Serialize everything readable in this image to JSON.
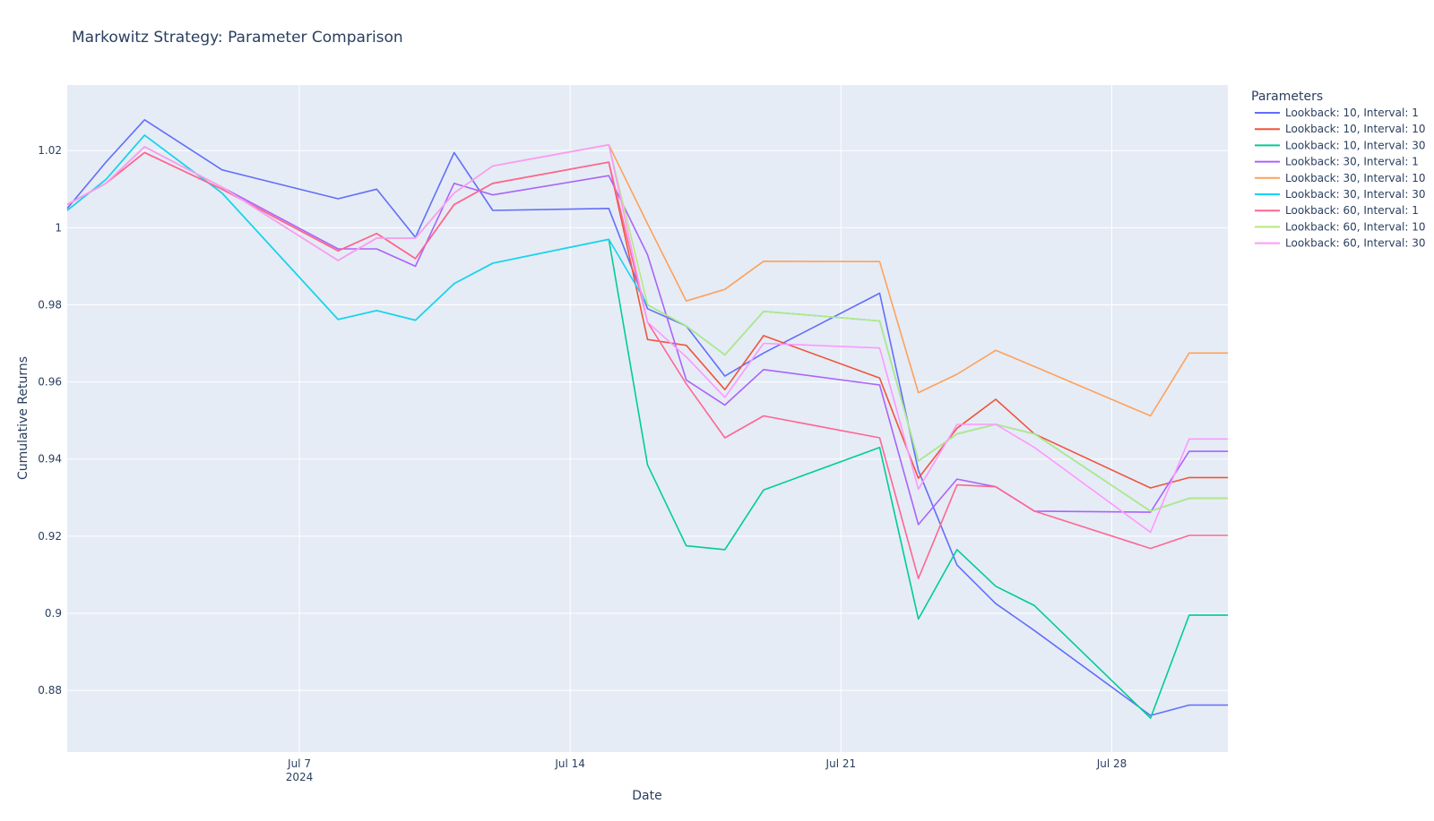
{
  "chart_data": {
    "type": "line",
    "title": "Markowitz Strategy: Parameter Comparison",
    "xlabel": "Date",
    "ylabel": "Cumulative Returns",
    "legend_title": "Parameters",
    "legend_position": "right",
    "grid": true,
    "x_ticks": [
      {
        "date": "2024-07-07",
        "label": "Jul 7",
        "sublabel": "2024"
      },
      {
        "date": "2024-07-14",
        "label": "Jul 14",
        "sublabel": ""
      },
      {
        "date": "2024-07-21",
        "label": "Jul 21",
        "sublabel": ""
      },
      {
        "date": "2024-07-28",
        "label": "Jul 28",
        "sublabel": ""
      }
    ],
    "y_ticks": [
      {
        "value": 0.88,
        "label": "0.88"
      },
      {
        "value": 0.9,
        "label": "0.9"
      },
      {
        "value": 0.92,
        "label": "0.92"
      },
      {
        "value": 0.94,
        "label": "0.94"
      },
      {
        "value": 0.96,
        "label": "0.96"
      },
      {
        "value": 0.98,
        "label": "0.98"
      },
      {
        "value": 1.0,
        "label": "1"
      },
      {
        "value": 1.02,
        "label": "1.02"
      }
    ],
    "xlim": [
      "2024-07-01",
      "2024-07-31"
    ],
    "ylim": [
      0.864,
      1.037
    ],
    "x": [
      "2024-07-01",
      "2024-07-02",
      "2024-07-03",
      "2024-07-05",
      "2024-07-08",
      "2024-07-09",
      "2024-07-10",
      "2024-07-11",
      "2024-07-12",
      "2024-07-15",
      "2024-07-16",
      "2024-07-17",
      "2024-07-18",
      "2024-07-19",
      "2024-07-22",
      "2024-07-23",
      "2024-07-24",
      "2024-07-25",
      "2024-07-26",
      "2024-07-29",
      "2024-07-30",
      "2024-07-31"
    ],
    "series": [
      {
        "name": "Lookback: 10, Interval: 1",
        "color": "#636efa",
        "values": [
          1.005,
          1.017,
          1.028,
          1.015,
          1.0075,
          1.01,
          0.9975,
          1.0195,
          1.0045,
          1.005,
          0.979,
          0.9745,
          0.9615,
          0.9675,
          0.983,
          0.937,
          0.9125,
          0.9025,
          0.8955,
          0.8735,
          0.8762,
          0.8762
        ]
      },
      {
        "name": "Lookback: 10, Interval: 10",
        "color": "#EF553B",
        "values": [
          1.006,
          1.0115,
          1.0195,
          1.01,
          0.994,
          0.9985,
          0.992,
          1.006,
          1.0115,
          1.017,
          0.971,
          0.9695,
          0.958,
          0.972,
          0.961,
          0.935,
          0.948,
          0.9555,
          0.9465,
          0.9325,
          0.9352,
          0.9352
        ]
      },
      {
        "name": "Lookback: 10, Interval: 30",
        "color": "#00cc96",
        "values": [
          1.0045,
          1.0125,
          1.024,
          1.009,
          0.9762,
          0.9785,
          0.976,
          0.9855,
          0.9908,
          0.997,
          0.9385,
          0.9175,
          0.9165,
          0.932,
          0.943,
          0.8985,
          0.9165,
          0.907,
          0.902,
          0.8728,
          0.8995,
          0.8995
        ]
      },
      {
        "name": "Lookback: 30, Interval: 1",
        "color": "#ab63fa",
        "values": [
          1.006,
          1.0115,
          1.021,
          1.0105,
          0.9945,
          0.9945,
          0.99,
          1.0115,
          1.0085,
          1.0135,
          0.993,
          0.9605,
          0.954,
          0.9632,
          0.9592,
          0.923,
          0.9348,
          0.9328,
          0.9265,
          0.9262,
          0.942,
          0.942
        ]
      },
      {
        "name": "Lookback: 30, Interval: 10",
        "color": "#FFA15A",
        "values": [
          1.006,
          1.0115,
          1.021,
          1.0105,
          0.9915,
          0.9973,
          0.9973,
          1.009,
          1.016,
          1.0215,
          1.001,
          0.981,
          0.984,
          0.9913,
          0.9912,
          0.9572,
          0.962,
          0.9682,
          0.964,
          0.9512,
          0.9675,
          0.9675
        ]
      },
      {
        "name": "Lookback: 30, Interval: 30",
        "color": "#19d3f3",
        "values": [
          1.0045,
          1.0125,
          1.024,
          1.009,
          0.9762,
          0.9785,
          0.976,
          0.9855,
          0.9908,
          0.997,
          0.98,
          0.9745,
          0.967,
          0.9783,
          0.9758,
          0.9395,
          0.9465,
          0.949,
          0.9465,
          0.9265,
          0.9298,
          0.9298
        ]
      },
      {
        "name": "Lookback: 60, Interval: 1",
        "color": "#FF6692",
        "values": [
          1.006,
          1.0115,
          1.0195,
          1.01,
          0.994,
          0.9985,
          0.992,
          1.006,
          1.0115,
          1.017,
          0.9755,
          0.9595,
          0.9455,
          0.9512,
          0.9455,
          0.909,
          0.9333,
          0.9328,
          0.9265,
          0.9168,
          0.9202,
          0.9202
        ]
      },
      {
        "name": "Lookback: 60, Interval: 10",
        "color": "#B6E880",
        "values": [
          1.006,
          1.0115,
          1.021,
          1.0105,
          0.9915,
          0.9973,
          0.9973,
          1.009,
          1.016,
          1.0215,
          0.98,
          0.9745,
          0.967,
          0.9783,
          0.9758,
          0.9395,
          0.9465,
          0.949,
          0.9465,
          0.9265,
          0.9298,
          0.9298
        ]
      },
      {
        "name": "Lookback: 60, Interval: 30",
        "color": "#FF97FF",
        "values": [
          1.006,
          1.0115,
          1.021,
          1.0105,
          0.9915,
          0.9973,
          0.9973,
          1.009,
          1.016,
          1.0215,
          0.9755,
          0.9665,
          0.956,
          0.97,
          0.9688,
          0.9322,
          0.949,
          0.949,
          0.943,
          0.921,
          0.9452,
          0.9452
        ]
      }
    ]
  }
}
